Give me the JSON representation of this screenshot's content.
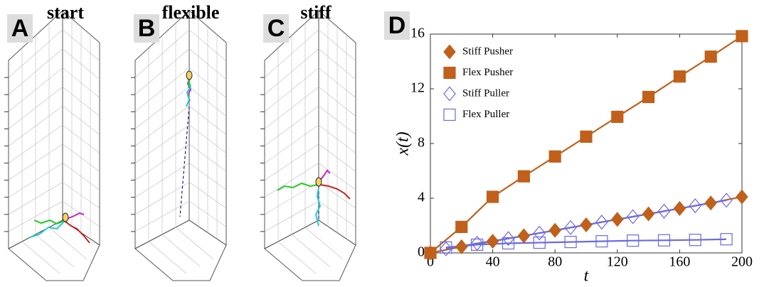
{
  "panels": [
    {
      "letter": "A",
      "title": "start"
    },
    {
      "letter": "B",
      "title": "flexible"
    },
    {
      "letter": "C",
      "title": "stiff"
    }
  ],
  "chart_data": {
    "type": "line",
    "letter": "D",
    "xlabel": "t",
    "ylabel": "x(t)",
    "xlim": [
      0,
      200
    ],
    "ylim": [
      0,
      16
    ],
    "xticks": [
      0,
      40,
      80,
      120,
      160,
      200
    ],
    "yticks": [
      0,
      4,
      8,
      12,
      16
    ],
    "grid": false,
    "legend": "upper left",
    "series": [
      {
        "name": "Stiff Pusher",
        "color": "#c0601a",
        "marker": "diamond",
        "filled": true,
        "x": [
          0,
          20,
          40,
          60,
          80,
          100,
          120,
          140,
          160,
          180,
          200
        ],
        "values": [
          0,
          0.45,
          0.85,
          1.25,
          1.65,
          2.05,
          2.45,
          2.85,
          3.25,
          3.65,
          4.1
        ]
      },
      {
        "name": "Flex Pusher",
        "color": "#c0601a",
        "marker": "square",
        "filled": true,
        "x": [
          0,
          20,
          40,
          60,
          80,
          100,
          120,
          140,
          160,
          180,
          200
        ],
        "values": [
          0,
          1.9,
          4.1,
          5.6,
          7.05,
          8.5,
          9.95,
          11.4,
          12.9,
          14.35,
          15.85
        ]
      },
      {
        "name": "Stiff Puller",
        "color": "#6a6ae0",
        "marker": "diamond",
        "filled": false,
        "x": [
          10,
          30,
          50,
          70,
          90,
          110,
          130,
          150,
          170,
          190
        ],
        "values": [
          0.3,
          0.7,
          1.05,
          1.45,
          1.85,
          2.25,
          2.65,
          3.05,
          3.45,
          3.85
        ]
      },
      {
        "name": "Flex Puller",
        "color": "#6a6ae0",
        "marker": "square",
        "filled": false,
        "x": [
          10,
          30,
          50,
          70,
          90,
          110,
          130,
          150,
          170,
          190
        ],
        "values": [
          0.4,
          0.6,
          0.7,
          0.75,
          0.8,
          0.85,
          0.9,
          0.92,
          0.95,
          1.0
        ]
      }
    ]
  }
}
